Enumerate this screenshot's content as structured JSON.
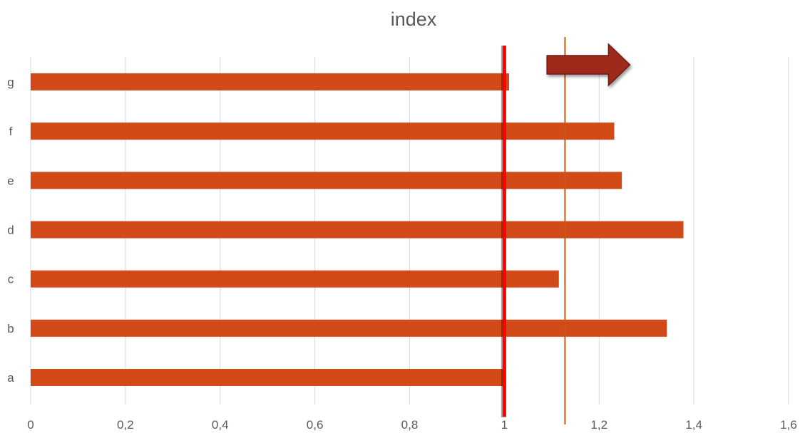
{
  "chart_data": {
    "type": "bar",
    "orientation": "horizontal",
    "title": "index",
    "categories": [
      "a",
      "b",
      "c",
      "d",
      "e",
      "f",
      "g"
    ],
    "values": [
      1.0,
      1.343,
      1.115,
      1.378,
      1.248,
      1.232,
      1.01
    ],
    "xlim": [
      0,
      1.6
    ],
    "x_ticks": [
      0,
      0.2,
      0.4,
      0.6,
      0.8,
      1.0,
      1.2,
      1.4,
      1.6
    ],
    "x_tick_labels": [
      "0",
      "0,2",
      "0,4",
      "0,6",
      "0,8",
      "1",
      "1,2",
      "1,4",
      "1,6"
    ],
    "grid": "vertical",
    "legend": "none",
    "reference_lines": [
      {
        "x": 1.0,
        "color": "#ff0000",
        "style": "thick"
      },
      {
        "x": 1.128,
        "color": "#c55a11",
        "style": "thin"
      }
    ],
    "arrow_annotation": {
      "direction": "right",
      "x_start": 1.09,
      "x_end": 1.265,
      "color": "#9e2a1e"
    },
    "colors": {
      "bar": "#d24a17",
      "grid": "#d9d9d9",
      "text": "#595959"
    }
  }
}
